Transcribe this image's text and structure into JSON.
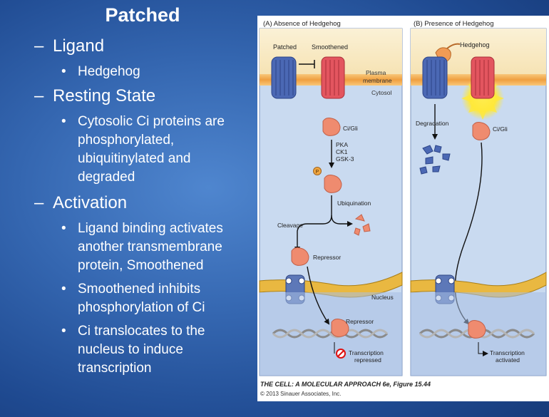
{
  "slide": {
    "title": "Patched",
    "sections": [
      {
        "dash": "–",
        "label": "Ligand",
        "bullets": [
          [
            "Hedgehog"
          ]
        ]
      },
      {
        "dash": "–",
        "label": "Resting State",
        "bullets": [
          [
            "Cytosolic Ci proteins are",
            "phosphorylated,",
            "ubiquitinylated and",
            "degraded"
          ]
        ]
      },
      {
        "dash": "–",
        "label": "Activation",
        "bullets": [
          [
            "Ligand binding activates",
            "another transmembrane",
            "protein, Smoothened"
          ],
          [
            "Smoothened inhibits",
            "phosphorylation of Ci"
          ],
          [
            "Ci translocates to the",
            "nucleus to induce",
            "transcription"
          ]
        ]
      }
    ],
    "bullet_char": "•"
  },
  "figure": {
    "panel_a_title": "(A) Absence of Hedgehog",
    "panel_b_title": "(B) Presence of Hedgehog",
    "labels": {
      "patched": "Patched",
      "smoothened": "Smoothened",
      "plasma_membrane_1": "Plasma",
      "plasma_membrane_2": "membrane",
      "cytosol": "Cytosol",
      "ci_gli_a": "Ci/Gli",
      "kinases_1": "PKA",
      "kinases_2": "CK1",
      "kinases_3": "GSK-3",
      "phospho": "P",
      "ubiquination": "Ubiquination",
      "cleavage": "Cleavage",
      "repressor_cyto": "Repressor",
      "nucleus": "Nucleus",
      "repressor_nuc": "Repressor",
      "transcription_repressed_1": "Transcription",
      "transcription_repressed_2": "repressed",
      "hedgehog": "Hedgehog",
      "degradation": "Degradation",
      "ci_gli_b": "Ci/Gli",
      "transcription_activated_1": "Transcription",
      "transcription_activated_2": "activated"
    },
    "caption": "THE CELL: A MOLECULAR APPROACH 6e, Figure 15.44",
    "copyright": "© 2013 Sinauer Associates, Inc.",
    "colors": {
      "cytosol": "#c8d9ef",
      "membrane": "#f3a347",
      "patched": "#4664b0",
      "smoothened": "#e2545f",
      "ci": "#ee8a6e",
      "nucleus_env": "#e8b640",
      "dna": "#9a9a9a",
      "activation_glow": "#fff35a"
    }
  }
}
